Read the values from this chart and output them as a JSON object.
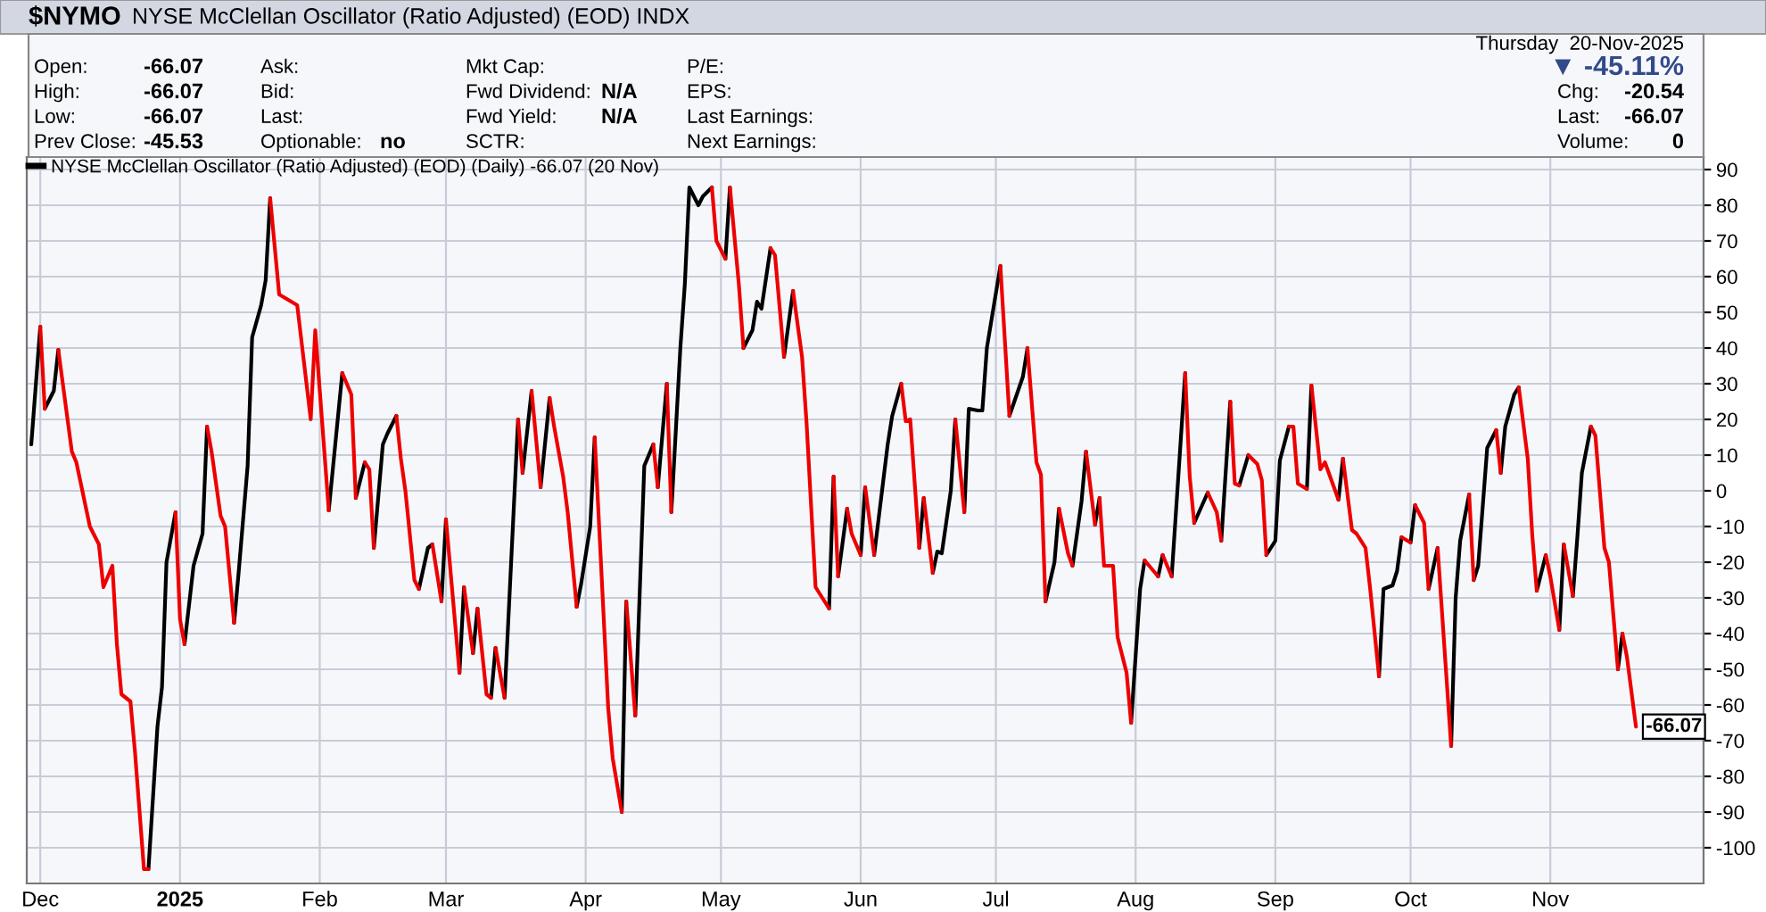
{
  "chart_data": {
    "type": "line",
    "title": "$NYMO",
    "subtitle": "NYSE McClellan Oscillator (Ratio Adjusted) (EOD) INDX",
    "annotations": [
      "Open:",
      "-66.07",
      "High:",
      "-66.07",
      "Low:",
      "-66.07",
      "Prev Close:",
      "-45.53",
      "Ask:",
      "Bid:",
      "Last:",
      "Optionable:",
      "no",
      "Mkt Cap:",
      "Fwd Dividend:",
      "N/A",
      "Fwd Yield:",
      "N/A",
      "SCTR:",
      "P/E:",
      "EPS:",
      "Last Earnings:",
      "Next Earnings:",
      "Thursday  20-Nov-2025",
      "▼ -45.11%",
      "Chg:",
      "-20.54",
      "Last:",
      "-66.07",
      "Volume:",
      "0",
      {
        "text": "-66.07",
        "x": "2025-11-20",
        "y": -66.07
      }
    ],
    "series": [
      {
        "name": "NYSE McClellan Oscillator (Ratio Adjusted) (EOD) (Daily) -66.07 (20 Nov)",
        "color": "#000000",
        "x": [
          "2024-11-29",
          "2024-12-01",
          null,
          "2024-12-02",
          "2024-12-04",
          "2024-12-05",
          null,
          "2024-12-25",
          "2024-12-27",
          "2024-12-28",
          "2024-12-29",
          "2024-12-31",
          null,
          "2025-01-02",
          "2025-01-04",
          "2025-01-06",
          "2025-01-07",
          null,
          "2025-01-13",
          "2025-01-14",
          "2025-01-16",
          "2025-01-17",
          "2025-01-19",
          "2025-01-20",
          "2025-01-21",
          null,
          "2025-02-03",
          "2025-02-06",
          null,
          "2025-02-09",
          "2025-02-11",
          null,
          "2025-02-13",
          "2025-02-15",
          "2025-02-16",
          "2025-02-18",
          null,
          "2025-02-23",
          "2025-02-25",
          "2025-02-26",
          null,
          "2025-02-28",
          "2025-03-01",
          null,
          "2025-03-04",
          "2025-03-05",
          null,
          "2025-03-07",
          "2025-03-08",
          null,
          "2025-03-11",
          "2025-03-12",
          null,
          "2025-03-14",
          "2025-03-17",
          null,
          "2025-03-18",
          "2025-03-20",
          null,
          "2025-03-22",
          "2025-03-24",
          null,
          "2025-03-30",
          "2025-03-31",
          "2025-04-02",
          "2025-04-03",
          null,
          "2025-04-09",
          "2025-04-10",
          null,
          "2025-04-12",
          "2025-04-14",
          "2025-04-16",
          null,
          "2025-04-17",
          "2025-04-19",
          null,
          "2025-04-20",
          "2025-04-22",
          "2025-04-23",
          "2025-04-24",
          "2025-04-26",
          "2025-04-27",
          "2025-04-29",
          null,
          "2025-05-02",
          "2025-05-03",
          null,
          "2025-05-06",
          "2025-05-08",
          "2025-05-09",
          "2025-05-10",
          "2025-05-12",
          null,
          "2025-05-15",
          "2025-05-17",
          null,
          "2025-05-25",
          "2025-05-26",
          null,
          "2025-05-27",
          "2025-05-29",
          null,
          "2025-06-01",
          "2025-06-02",
          null,
          "2025-06-04",
          "2025-06-07",
          "2025-06-08",
          "2025-06-10",
          null,
          "2025-06-14",
          "2025-06-15",
          null,
          "2025-06-17",
          "2025-06-18",
          "2025-06-19",
          "2025-06-21",
          "2025-06-22",
          null,
          "2025-06-24",
          "2025-06-25",
          "2025-06-27",
          "2025-06-28",
          "2025-06-29",
          "2025-07-02",
          null,
          "2025-07-04",
          "2025-07-07",
          "2025-07-08",
          null,
          "2025-07-12",
          "2025-07-14",
          "2025-07-15",
          null,
          "2025-07-18",
          "2025-07-20",
          "2025-07-21",
          null,
          "2025-07-23",
          "2025-07-24",
          null,
          "2025-07-31",
          "2025-08-02",
          "2025-08-03",
          null,
          "2025-08-06",
          "2025-08-07",
          null,
          "2025-08-09",
          "2025-08-12",
          null,
          "2025-08-14",
          "2025-08-17",
          null,
          "2025-08-20",
          "2025-08-22",
          null,
          "2025-08-24",
          "2025-08-26",
          null,
          "2025-08-30",
          "2025-09-01",
          "2025-09-02",
          "2025-09-04",
          null,
          "2025-09-08",
          "2025-09-09",
          null,
          "2025-09-15",
          "2025-09-16",
          null,
          "2025-09-24",
          "2025-09-25",
          "2025-09-27",
          "2025-09-28",
          "2025-09-29",
          null,
          "2025-10-01",
          "2025-10-02",
          null,
          "2025-10-05",
          "2025-10-07",
          null,
          "2025-10-10",
          "2025-10-11",
          "2025-10-12",
          "2025-10-14",
          null,
          "2025-10-15",
          "2025-10-16",
          "2025-10-18",
          "2025-10-20",
          null,
          "2025-10-21",
          "2025-10-22",
          "2025-10-24",
          "2025-10-25",
          null,
          "2025-10-29",
          "2025-10-31",
          null,
          "2025-11-03",
          "2025-11-04",
          null,
          "2025-11-06",
          "2025-11-07",
          "2025-11-08",
          "2025-11-10",
          null,
          "2025-11-16",
          "2025-11-17"
        ],
        "values": [
          13,
          46,
          null,
          23,
          28,
          39.5,
          null,
          -106,
          -66,
          -55,
          -20,
          -6,
          null,
          -43,
          -21,
          -12,
          18,
          null,
          -37,
          -23,
          7,
          43,
          52,
          59,
          82,
          null,
          -5.5,
          33,
          null,
          -2,
          8,
          null,
          -16,
          13,
          16,
          21,
          null,
          -27.5,
          -16,
          -15,
          null,
          -31,
          -8,
          null,
          -51,
          -27,
          null,
          -45.5,
          -33,
          null,
          -58,
          -44,
          null,
          -58,
          20,
          null,
          5,
          28,
          null,
          1,
          26,
          null,
          -32.5,
          -26,
          -10,
          15,
          null,
          -90,
          -31,
          null,
          -63,
          7,
          13,
          null,
          1,
          30,
          null,
          -6,
          40,
          58,
          85,
          80,
          82.5,
          85,
          null,
          65,
          85,
          null,
          40,
          45,
          53,
          51,
          68,
          null,
          37.5,
          56,
          null,
          -33,
          4,
          null,
          -24,
          -5,
          null,
          -18,
          1,
          null,
          -18,
          13,
          21,
          30,
          null,
          -16,
          -2,
          null,
          -23,
          -17,
          -17.5,
          0,
          20,
          null,
          -6,
          23,
          22.5,
          22.5,
          40,
          63,
          null,
          21,
          32,
          40,
          null,
          -31,
          -20,
          -5,
          null,
          -21,
          -3,
          11,
          null,
          -9.5,
          -2,
          null,
          -65,
          -27.5,
          -19.5,
          null,
          -24,
          -18,
          null,
          -24,
          33,
          null,
          -9,
          -0.5,
          null,
          -14,
          25,
          null,
          1.5,
          10,
          null,
          -18,
          -14,
          8.5,
          18,
          null,
          0.5,
          29.5,
          null,
          -2.5,
          9,
          null,
          -52,
          -27.5,
          -26.5,
          -22.5,
          -13,
          null,
          -14.5,
          -4,
          null,
          -27.5,
          -16,
          null,
          -71.5,
          -30,
          -14,
          -1,
          null,
          -25,
          -21,
          12,
          17,
          null,
          5,
          18,
          27,
          29,
          null,
          -28,
          -18,
          null,
          -39,
          -15,
          null,
          -29.5,
          -13,
          5,
          18,
          null,
          -50,
          -40
        ]
      },
      {
        "color": "#ee0000",
        "x": [
          "2024-12-01",
          "2024-12-02",
          null,
          "2024-12-05",
          "2024-12-08",
          "2024-12-09",
          "2024-12-11",
          "2024-12-12",
          "2024-12-14",
          "2024-12-15",
          "2024-12-17",
          "2024-12-18",
          "2024-12-19",
          "2024-12-21",
          "2024-12-22",
          "2024-12-24",
          "2024-12-25",
          null,
          "2024-12-31",
          "2025-01-01",
          "2025-01-02",
          null,
          "2025-01-07",
          "2025-01-08",
          "2025-01-10",
          "2025-01-11",
          "2025-01-13",
          null,
          "2025-01-21",
          "2025-01-23",
          "2025-01-27",
          "2025-01-30",
          "2025-01-31",
          "2025-02-03",
          null,
          "2025-02-06",
          "2025-02-08",
          "2025-02-09",
          null,
          "2025-02-11",
          "2025-02-12",
          "2025-02-13",
          null,
          "2025-02-18",
          "2025-02-19",
          "2025-02-20",
          "2025-02-22",
          "2025-02-23",
          null,
          "2025-02-26",
          "2025-02-28",
          null,
          "2025-03-01",
          "2025-03-04",
          null,
          "2025-03-05",
          "2025-03-07",
          null,
          "2025-03-08",
          "2025-03-10",
          "2025-03-11",
          null,
          "2025-03-12",
          "2025-03-14",
          null,
          "2025-03-17",
          "2025-03-18",
          null,
          "2025-03-20",
          "2025-03-22",
          null,
          "2025-03-24",
          "2025-03-25",
          "2025-03-27",
          "2025-03-28",
          "2025-03-30",
          null,
          "2025-04-03",
          "2025-04-06",
          "2025-04-07",
          "2025-04-09",
          null,
          "2025-04-10",
          "2025-04-12",
          null,
          "2025-04-16",
          "2025-04-17",
          null,
          "2025-04-19",
          "2025-04-20",
          null,
          "2025-04-29",
          "2025-04-30",
          "2025-05-02",
          null,
          "2025-05-03",
          "2025-05-05",
          "2025-05-06",
          null,
          "2025-05-12",
          "2025-05-13",
          "2025-05-15",
          null,
          "2025-05-17",
          "2025-05-19",
          "2025-05-20",
          "2025-05-22",
          "2025-05-23",
          "2025-05-25",
          null,
          "2025-05-26",
          "2025-05-27",
          null,
          "2025-05-29",
          "2025-05-30",
          "2025-06-01",
          null,
          "2025-06-02",
          "2025-06-04",
          null,
          "2025-06-10",
          "2025-06-11",
          "2025-06-12",
          "2025-06-14",
          null,
          "2025-06-15",
          "2025-06-17",
          null,
          "2025-06-22",
          "2025-06-24",
          null,
          "2025-07-02",
          "2025-07-04",
          null,
          "2025-07-08",
          "2025-07-10",
          "2025-07-11",
          "2025-07-12",
          null,
          "2025-07-15",
          "2025-07-17",
          "2025-07-18",
          null,
          "2025-07-21",
          "2025-07-23",
          null,
          "2025-07-24",
          "2025-07-25",
          "2025-07-27",
          "2025-07-28",
          "2025-07-30",
          "2025-07-31",
          null,
          "2025-08-03",
          "2025-08-06",
          null,
          "2025-08-07",
          "2025-08-09",
          null,
          "2025-08-12",
          "2025-08-13",
          "2025-08-14",
          null,
          "2025-08-17",
          "2025-08-19",
          "2025-08-20",
          null,
          "2025-08-22",
          "2025-08-23",
          "2025-08-24",
          null,
          "2025-08-26",
          "2025-08-28",
          "2025-08-29",
          "2025-08-30",
          null,
          "2025-09-04",
          "2025-09-05",
          "2025-09-06",
          "2025-09-08",
          null,
          "2025-09-09",
          "2025-09-11",
          "2025-09-12",
          "2025-09-14",
          "2025-09-15",
          null,
          "2025-09-16",
          "2025-09-18",
          "2025-09-19",
          "2025-09-21",
          "2025-09-22",
          "2025-09-24",
          null,
          "2025-09-29",
          "2025-10-01",
          null,
          "2025-10-02",
          "2025-10-04",
          "2025-10-05",
          null,
          "2025-10-07",
          "2025-10-10",
          null,
          "2025-10-14",
          "2025-10-15",
          null,
          "2025-10-20",
          "2025-10-21",
          null,
          "2025-10-25",
          "2025-10-27",
          "2025-10-28",
          "2025-10-29",
          null,
          "2025-10-31",
          "2025-11-01",
          "2025-11-03",
          null,
          "2025-11-04",
          "2025-11-06",
          null,
          "2025-11-10",
          "2025-11-11",
          "2025-11-13",
          "2025-11-14",
          "2025-11-16",
          null,
          "2025-11-17",
          "2025-11-18",
          "2025-11-20"
        ],
        "values": [
          46,
          23,
          null,
          39.5,
          11,
          8,
          -4,
          -10,
          -15,
          -27,
          -21,
          -43,
          -57,
          -59,
          -73,
          -106,
          -106,
          null,
          -6,
          -36,
          -43,
          null,
          18,
          11,
          -7,
          -10,
          -37,
          null,
          82,
          55,
          52,
          20,
          45,
          -5.5,
          null,
          33,
          27,
          -2,
          null,
          8,
          6,
          -16,
          null,
          21,
          9,
          0,
          -25,
          -27.5,
          null,
          -15,
          -31,
          null,
          -8,
          -51,
          null,
          -27,
          -45.5,
          null,
          -33,
          -57,
          -58,
          null,
          -44,
          -58,
          null,
          20,
          5,
          null,
          28,
          1,
          null,
          26,
          18,
          4,
          -6,
          -32.5,
          null,
          15,
          -61,
          -75,
          -90,
          null,
          -31,
          -63,
          null,
          13,
          1,
          null,
          30,
          -6,
          null,
          85,
          70,
          65,
          null,
          85,
          57.5,
          40,
          null,
          68,
          66,
          37.5,
          null,
          56,
          37.5,
          19,
          -27,
          -29,
          -33,
          null,
          4,
          -24,
          null,
          -5,
          -12,
          -18,
          null,
          1,
          -18,
          null,
          30,
          19.5,
          20,
          -16,
          null,
          -2,
          -23,
          null,
          20,
          -6,
          null,
          63,
          21,
          null,
          40,
          8,
          4.5,
          -31,
          null,
          -5,
          -17.5,
          -21,
          null,
          11,
          -9.5,
          null,
          -2,
          -21,
          -21,
          -41,
          -51,
          -65,
          null,
          -19.5,
          -24,
          null,
          -18,
          -24,
          null,
          33,
          4,
          -9,
          null,
          -0.5,
          -6,
          -14,
          null,
          25,
          2,
          1.5,
          null,
          10,
          7.5,
          3,
          -18,
          null,
          18,
          18,
          2,
          0.5,
          null,
          29.5,
          6,
          8,
          1,
          -2.5,
          null,
          9,
          -11,
          -12,
          -16,
          -27,
          -52,
          null,
          -13,
          -14.5,
          null,
          -4,
          -9,
          -27.5,
          null,
          -16,
          -71.5,
          null,
          -1,
          -25,
          null,
          17,
          5,
          null,
          29,
          9,
          -12.5,
          -28,
          null,
          -18,
          -24,
          -39,
          null,
          -15,
          -29.5,
          null,
          18,
          15.5,
          -16,
          -20,
          -50,
          null,
          -40,
          -46.5,
          -66.07
        ]
      }
    ],
    "xlim": [
      "2024-11-28",
      "2025-12-05"
    ],
    "xticks": [
      {
        "value": "2024-12-01",
        "label": "Dec"
      },
      {
        "value": "2025-01-01",
        "label": "2025"
      },
      {
        "value": "2025-02-01",
        "label": "Feb"
      },
      {
        "value": "2025-03-01",
        "label": "Mar"
      },
      {
        "value": "2025-04-01",
        "label": "Apr"
      },
      {
        "value": "2025-05-01",
        "label": "May"
      },
      {
        "value": "2025-06-01",
        "label": "Jun"
      },
      {
        "value": "2025-07-01",
        "label": "Jul"
      },
      {
        "value": "2025-08-01",
        "label": "Aug"
      },
      {
        "value": "2025-09-01",
        "label": "Sep"
      },
      {
        "value": "2025-10-01",
        "label": "Oct"
      },
      {
        "value": "2025-11-01",
        "label": "Nov"
      }
    ],
    "ylim": [
      -110,
      93.5
    ],
    "yticks": [
      -100,
      -90,
      -80,
      -70,
      -60,
      -50,
      -40,
      -30,
      -20,
      -10,
      0,
      10,
      20,
      30,
      40,
      50,
      60,
      70,
      80,
      90
    ],
    "grid": true,
    "legend": "top left",
    "line_style": "solid",
    "marker": "none"
  }
}
